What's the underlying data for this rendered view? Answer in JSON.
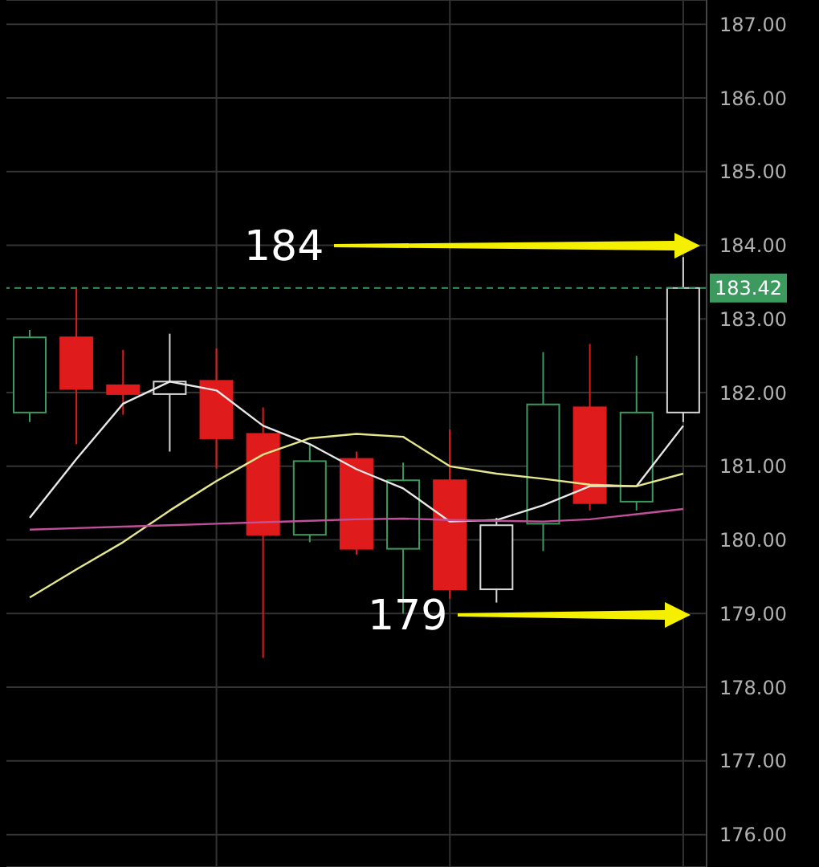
{
  "chart_data": {
    "type": "candlestick",
    "categories": [
      null,
      null,
      null,
      null,
      null,
      null,
      null,
      null,
      null,
      null,
      null,
      null,
      null,
      null,
      null
    ],
    "ohlc": [
      [
        181.73,
        182.85,
        181.6,
        182.75
      ],
      [
        182.75,
        183.41,
        181.3,
        182.05
      ],
      [
        182.1,
        182.58,
        181.7,
        181.98
      ],
      [
        181.98,
        182.8,
        181.2,
        182.15
      ],
      [
        182.16,
        182.6,
        180.97,
        181.38
      ],
      [
        181.44,
        181.8,
        178.4,
        180.07
      ],
      [
        180.07,
        181.3,
        179.97,
        181.07
      ],
      [
        181.1,
        181.2,
        179.8,
        179.88
      ],
      [
        179.88,
        181.05,
        179.0,
        180.81
      ],
      [
        180.81,
        181.5,
        179.2,
        179.33
      ],
      [
        179.33,
        180.3,
        179.15,
        180.2
      ],
      [
        180.22,
        182.55,
        179.85,
        181.84
      ],
      [
        181.8,
        182.66,
        180.4,
        180.5
      ],
      [
        180.52,
        182.5,
        180.4,
        181.73
      ],
      [
        181.73,
        183.84,
        181.6,
        183.42
      ]
    ],
    "colors": [
      "#3c9a5f",
      "#e01b1b",
      "#e01b1b",
      "#d8d8d8",
      "#e01b1b",
      "#e01b1b",
      "#3c9a5f",
      "#e01b1b",
      "#3c9a5f",
      "#e01b1b",
      "#d8d8d8",
      "#3c9a5f",
      "#e01b1b",
      "#3c9a5f",
      "#d8d8d8"
    ],
    "series": [
      {
        "type": "line",
        "color": "#e8e8e8",
        "values": [
          180.3,
          181.1,
          181.85,
          182.15,
          182.03,
          181.55,
          181.3,
          180.96,
          180.7,
          180.25,
          180.27,
          180.47,
          180.73,
          180.73,
          181.55
        ]
      },
      {
        "type": "line",
        "color": "#e6e68a",
        "values": [
          179.22,
          179.6,
          179.97,
          180.4,
          180.8,
          181.16,
          181.38,
          181.44,
          181.4,
          181.0,
          180.9,
          180.83,
          180.75,
          180.73,
          180.9
        ]
      },
      {
        "type": "line",
        "color": "#c0509a",
        "values": [
          180.14,
          180.16,
          180.18,
          180.2,
          180.22,
          180.24,
          180.26,
          180.28,
          180.29,
          180.27,
          180.26,
          180.25,
          180.28,
          180.35,
          180.42
        ]
      }
    ],
    "ylim": [
      175.56,
      187.33
    ],
    "yticks": [
      {
        "value": 176,
        "label": "176.00"
      },
      {
        "value": 177,
        "label": "177.00"
      },
      {
        "value": 178,
        "label": "178.00"
      },
      {
        "value": 179,
        "label": "179.00"
      },
      {
        "value": 180,
        "label": "180.00"
      },
      {
        "value": 181,
        "label": "181.00"
      },
      {
        "value": 182,
        "label": "182.00"
      },
      {
        "value": 183,
        "label": "183.00"
      },
      {
        "value": 184,
        "label": "184.00"
      },
      {
        "value": 185,
        "label": "185.00"
      },
      {
        "value": 186,
        "label": "186.00"
      },
      {
        "value": 187,
        "label": "187.00"
      }
    ],
    "grid": true,
    "marker": "none",
    "ref_lines": [
      {
        "axis": "y",
        "value": 183.42,
        "label": "183.42",
        "color": "#3c9a5f",
        "line_style": "dashed"
      }
    ],
    "annotations": [
      "184",
      "179"
    ]
  }
}
